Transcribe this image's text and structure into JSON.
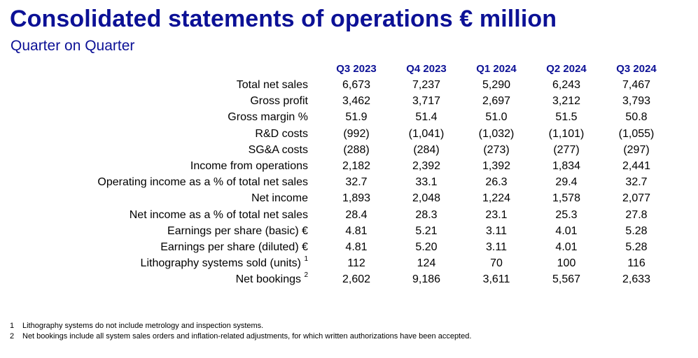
{
  "header": {
    "title": "Consolidated statements of operations € million",
    "subtitle": "Quarter on Quarter"
  },
  "colors": {
    "accent": "#0c1196"
  },
  "table": {
    "columns": [
      "Q3 2023",
      "Q4 2023",
      "Q1 2024",
      "Q2 2024",
      "Q3 2024"
    ],
    "rows": [
      {
        "label": "Total net sales",
        "sup": "",
        "values": [
          "6,673",
          "7,237",
          "5,290",
          "6,243",
          "7,467"
        ]
      },
      {
        "label": "Gross profit",
        "sup": "",
        "values": [
          "3,462",
          "3,717",
          "2,697",
          "3,212",
          "3,793"
        ]
      },
      {
        "label": "Gross margin %",
        "sup": "",
        "values": [
          "51.9",
          "51.4",
          "51.0",
          "51.5",
          "50.8"
        ]
      },
      {
        "label": "R&D costs",
        "sup": "",
        "values": [
          "(992)",
          "(1,041)",
          "(1,032)",
          "(1,101)",
          "(1,055)"
        ]
      },
      {
        "label": "SG&A costs",
        "sup": "",
        "values": [
          "(288)",
          "(284)",
          "(273)",
          "(277)",
          "(297)"
        ]
      },
      {
        "label": "Income from operations",
        "sup": "",
        "values": [
          "2,182",
          "2,392",
          "1,392",
          "1,834",
          "2,441"
        ]
      },
      {
        "label": "Operating income as a % of total net sales",
        "sup": "",
        "values": [
          "32.7",
          "33.1",
          "26.3",
          "29.4",
          "32.7"
        ]
      },
      {
        "label": "Net income",
        "sup": "",
        "values": [
          "1,893",
          "2,048",
          "1,224",
          "1,578",
          "2,077"
        ]
      },
      {
        "label": "Net income as a % of total net sales",
        "sup": "",
        "values": [
          "28.4",
          "28.3",
          "23.1",
          "25.3",
          "27.8"
        ]
      },
      {
        "label": "Earnings per share (basic) €",
        "sup": "",
        "values": [
          "4.81",
          "5.21",
          "3.11",
          "4.01",
          "5.28"
        ]
      },
      {
        "label": "Earnings per share (diluted) €",
        "sup": "",
        "values": [
          "4.81",
          "5.20",
          "3.11",
          "4.01",
          "5.28"
        ]
      },
      {
        "label": "Lithography systems sold (units)",
        "sup": "1",
        "values": [
          "112",
          "124",
          "70",
          "100",
          "116"
        ]
      },
      {
        "label": "Net bookings",
        "sup": "2",
        "values": [
          "2,602",
          "9,186",
          "3,611",
          "5,567",
          "2,633"
        ]
      }
    ]
  },
  "footnotes": [
    {
      "num": "1",
      "text": "Lithography systems do not include metrology and inspection systems."
    },
    {
      "num": "2",
      "text": "Net bookings include all system sales orders and inflation-related adjustments, for which written authorizations have been accepted."
    }
  ]
}
